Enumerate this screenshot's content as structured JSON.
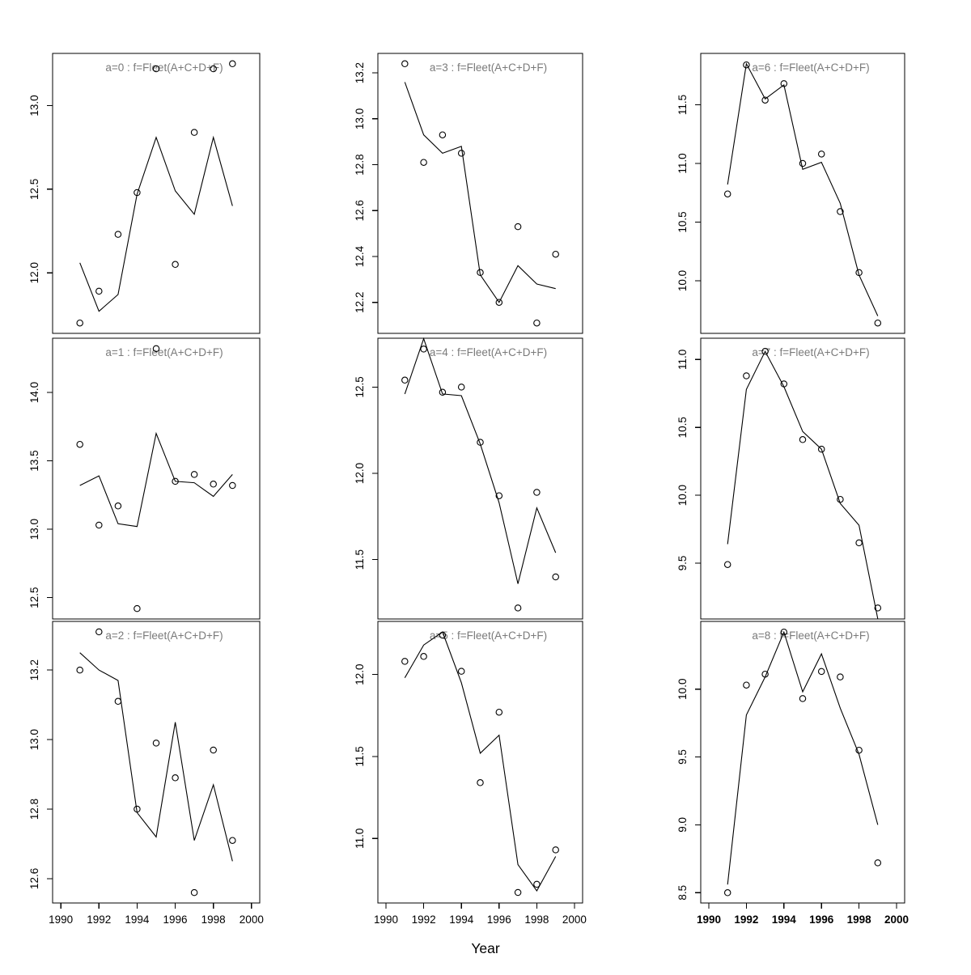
{
  "figure": {
    "xlabel": "Year",
    "background": "#ffffff",
    "axis_color": "#000000",
    "title_color": "#7a7a7a",
    "line_color": "#000000",
    "point_color": "#000000"
  },
  "chart_data": [
    {
      "type": "line",
      "panel_label": "a=0",
      "title": "a=0 : f=Fleet(A+C+D+F)",
      "grid": {
        "row": 0,
        "col": 0
      },
      "x": [
        1991,
        1992,
        1993,
        1994,
        1995,
        1996,
        1997,
        1998,
        1999
      ],
      "xticks": [
        1990,
        1992,
        1994,
        1996,
        1998,
        2000
      ],
      "xlim": [
        1989.568,
        2000.432
      ],
      "ylim": [
        11.638,
        13.312
      ],
      "yticks": [
        "12.0",
        "12.5",
        "13.0"
      ],
      "series": [
        {
          "name": "observed",
          "style": "points",
          "values": [
            11.7,
            11.89,
            12.23,
            12.48,
            13.22,
            12.05,
            12.84,
            13.22,
            13.25
          ]
        },
        {
          "name": "fitted",
          "style": "line",
          "values": [
            12.06,
            11.77,
            11.87,
            12.47,
            12.81,
            12.49,
            12.35,
            12.81,
            12.4
          ]
        }
      ]
    },
    {
      "type": "line",
      "panel_label": "a=1",
      "title": "a=1 : f=Fleet(A+C+D+F)",
      "grid": {
        "row": 1,
        "col": 0
      },
      "x": [
        1991,
        1992,
        1993,
        1994,
        1995,
        1996,
        1997,
        1998,
        1999
      ],
      "xticks": [
        1990,
        1992,
        1994,
        1996,
        1998,
        2000
      ],
      "xlim": [
        1989.568,
        2000.432
      ],
      "ylim": [
        12.344,
        14.396
      ],
      "yticks": [
        "12.5",
        "13.0",
        "13.5",
        "14.0"
      ],
      "series": [
        {
          "name": "observed",
          "style": "points",
          "values": [
            13.62,
            13.03,
            13.17,
            12.42,
            14.32,
            13.35,
            13.4,
            13.33,
            13.32
          ]
        },
        {
          "name": "fitted",
          "style": "line",
          "values": [
            13.32,
            13.39,
            13.04,
            13.02,
            13.7,
            13.35,
            13.34,
            13.24,
            13.4
          ]
        }
      ]
    },
    {
      "type": "line",
      "panel_label": "a=2",
      "title": "a=2 : f=Fleet(A+C+D+F)",
      "grid": {
        "row": 2,
        "col": 0
      },
      "x": [
        1991,
        1992,
        1993,
        1994,
        1995,
        1996,
        1997,
        1998,
        1999
      ],
      "xticks": [
        1990,
        1992,
        1994,
        1996,
        1998,
        2000
      ],
      "xlim": [
        1989.568,
        2000.432
      ],
      "ylim": [
        12.53,
        13.34
      ],
      "yticks": [
        "12.6",
        "12.8",
        "13.0",
        "13.2"
      ],
      "series": [
        {
          "name": "observed",
          "style": "points",
          "values": [
            13.2,
            13.31,
            13.11,
            12.8,
            12.99,
            12.89,
            12.56,
            12.97,
            12.71
          ]
        },
        {
          "name": "fitted",
          "style": "line",
          "values": [
            13.25,
            13.2,
            13.17,
            12.79,
            12.72,
            13.05,
            12.71,
            12.87,
            12.65
          ]
        }
      ]
    },
    {
      "type": "line",
      "panel_label": "a=3",
      "title": "a=3 : f=Fleet(A+C+D+F)",
      "grid": {
        "row": 0,
        "col": 1
      },
      "x": [
        1991,
        1992,
        1993,
        1994,
        1995,
        1996,
        1997,
        1998,
        1999
      ],
      "xticks": [
        1990,
        1992,
        1994,
        1996,
        1998,
        2000
      ],
      "xlim": [
        1989.568,
        2000.432
      ],
      "ylim": [
        12.065,
        13.285
      ],
      "yticks": [
        "12.2",
        "12.4",
        "12.6",
        "12.8",
        "13.0",
        "13.2"
      ],
      "series": [
        {
          "name": "observed",
          "style": "points",
          "values": [
            13.24,
            12.81,
            12.93,
            12.85,
            12.33,
            12.2,
            12.53,
            12.11,
            12.41
          ]
        },
        {
          "name": "fitted",
          "style": "line",
          "values": [
            13.16,
            12.93,
            12.85,
            12.88,
            12.32,
            12.2,
            12.36,
            12.28,
            12.26
          ]
        }
      ]
    },
    {
      "type": "line",
      "panel_label": "a=4",
      "title": "a=4 : f=Fleet(A+C+D+F)",
      "grid": {
        "row": 1,
        "col": 1
      },
      "x": [
        1991,
        1992,
        1993,
        1994,
        1995,
        1996,
        1997,
        1998,
        1999
      ],
      "xticks": [
        1990,
        1992,
        1994,
        1996,
        1998,
        2000
      ],
      "xlim": [
        1989.568,
        2000.432
      ],
      "ylim": [
        11.156,
        12.783
      ],
      "yticks": [
        "11.5",
        "12.0",
        "12.5"
      ],
      "series": [
        {
          "name": "observed",
          "style": "points",
          "values": [
            12.54,
            12.72,
            12.47,
            12.5,
            12.18,
            11.87,
            11.22,
            11.89,
            11.4
          ]
        },
        {
          "name": "fitted",
          "style": "line",
          "values": [
            12.46,
            12.78,
            12.46,
            12.45,
            12.17,
            11.83,
            11.36,
            11.8,
            11.54
          ]
        }
      ]
    },
    {
      "type": "line",
      "panel_label": "a=5",
      "title": "a=5 : f=Fleet(A+C+D+F)",
      "grid": {
        "row": 2,
        "col": 1
      },
      "x": [
        1991,
        1992,
        1993,
        1994,
        1995,
        1996,
        1997,
        1998,
        1999
      ],
      "xticks": [
        1990,
        1992,
        1994,
        1996,
        1998,
        2000
      ],
      "xlim": [
        1989.568,
        2000.432
      ],
      "ylim": [
        10.606,
        12.324
      ],
      "yticks": [
        "11.0",
        "11.5",
        "12.0"
      ],
      "series": [
        {
          "name": "observed",
          "style": "points",
          "values": [
            12.08,
            12.11,
            12.24,
            12.02,
            11.34,
            11.77,
            10.67,
            10.72,
            10.93
          ]
        },
        {
          "name": "fitted",
          "style": "line",
          "values": [
            11.98,
            12.18,
            12.26,
            11.95,
            11.52,
            11.63,
            10.84,
            10.68,
            10.89
          ]
        }
      ]
    },
    {
      "type": "line",
      "panel_label": "a=6",
      "title": "a=6 : f=Fleet(A+C+D+F)",
      "grid": {
        "row": 0,
        "col": 2
      },
      "x": [
        1991,
        1992,
        1993,
        1994,
        1995,
        1996,
        1997,
        1998,
        1999
      ],
      "xticks": [
        1990,
        1992,
        1994,
        1996,
        1998,
        2000
      ],
      "xlim": [
        1989.568,
        2000.432
      ],
      "ylim": [
        9.552,
        11.938
      ],
      "yticks": [
        "10.0",
        "10.5",
        "11.0",
        "11.5"
      ],
      "series": [
        {
          "name": "observed",
          "style": "points",
          "values": [
            10.74,
            11.84,
            11.54,
            11.68,
            11.0,
            11.08,
            10.59,
            10.07,
            9.64
          ]
        },
        {
          "name": "fitted",
          "style": "line",
          "values": [
            10.82,
            11.85,
            11.55,
            11.67,
            10.95,
            11.01,
            10.66,
            10.05,
            9.7
          ]
        }
      ]
    },
    {
      "type": "line",
      "panel_label": "a=7",
      "title": "a=7 : f=Fleet(A+C+D+F)",
      "grid": {
        "row": 1,
        "col": 2
      },
      "x": [
        1991,
        1992,
        1993,
        1994,
        1995,
        1996,
        1997,
        1998,
        1999
      ],
      "xticks": [
        1990,
        1992,
        1994,
        1996,
        1998,
        2000
      ],
      "xlim": [
        1989.568,
        2000.432
      ],
      "ylim": [
        9.089,
        11.157
      ],
      "yticks": [
        "9.5",
        "10.0",
        "10.5",
        "11.0"
      ],
      "series": [
        {
          "name": "observed",
          "style": "points",
          "values": [
            9.49,
            10.88,
            11.06,
            10.82,
            10.41,
            10.34,
            9.97,
            9.65,
            9.17
          ]
        },
        {
          "name": "fitted",
          "style": "line",
          "values": [
            9.64,
            10.78,
            11.06,
            10.8,
            10.47,
            10.34,
            9.94,
            9.78,
            9.09
          ]
        }
      ]
    },
    {
      "type": "line",
      "panel_label": "a=8",
      "title": "a=8 : f=Fleet(A+C+D+F)",
      "grid": {
        "row": 2,
        "col": 2
      },
      "xticks_bold": true,
      "x": [
        1991,
        1992,
        1993,
        1994,
        1995,
        1996,
        1997,
        1998,
        1999
      ],
      "xticks": [
        1990,
        1992,
        1994,
        1996,
        1998,
        2000
      ],
      "xlim": [
        1989.568,
        2000.432
      ],
      "ylim": [
        8.424,
        10.499
      ],
      "yticks": [
        "8.5",
        "9.0",
        "9.5",
        "10.0"
      ],
      "series": [
        {
          "name": "observed",
          "style": "points",
          "values": [
            8.5,
            10.03,
            10.11,
            10.42,
            9.93,
            10.13,
            10.09,
            9.55,
            8.72
          ]
        },
        {
          "name": "fitted",
          "style": "line",
          "values": [
            8.56,
            9.81,
            10.09,
            10.42,
            9.98,
            10.26,
            9.86,
            9.52,
            9.0
          ]
        }
      ]
    }
  ]
}
